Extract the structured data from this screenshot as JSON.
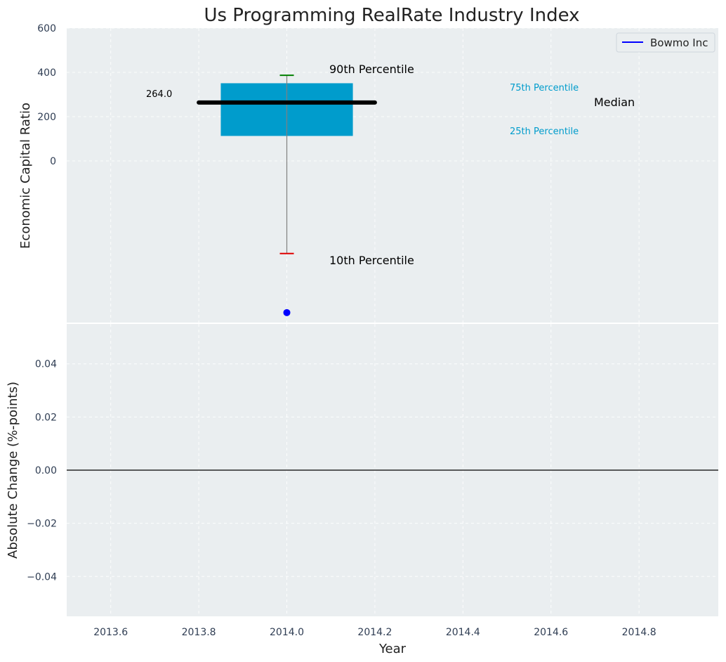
{
  "chart_data": [
    {
      "type": "box",
      "title": "Us Programming RealRate Industry Index",
      "ylabel": "Economic Capital Ratio",
      "ylim": [
        -730,
        600
      ],
      "yticks": [
        0,
        200,
        400,
        600
      ],
      "xlim": [
        2013.5,
        2014.98
      ],
      "grid": true,
      "year": 2014.0,
      "percentiles": {
        "p10": -418,
        "p25": 113,
        "median": 264,
        "p75": 351,
        "p90": 387
      },
      "median_label": "264.0",
      "series": [
        {
          "name": "Bowmo Inc",
          "x": [
            2014.0
          ],
          "y": [
            -685
          ],
          "color": "#0000ff"
        }
      ],
      "annotations": {
        "p90": "90th Percentile",
        "p10": "10th Percentile",
        "p75": "75th Percentile",
        "p25": "25th Percentile",
        "median": "Median"
      },
      "legend": {
        "placement": "top-right",
        "entries": [
          "Bowmo Inc"
        ]
      },
      "colors": {
        "box": "#009ccc",
        "median": "#000000",
        "p90_cap": "#008000",
        "p10_cap": "#e00000",
        "whisker": "#808080",
        "background": "#eaeef0"
      }
    },
    {
      "type": "line",
      "ylabel": "Absolute Change (%-points)",
      "xlabel": "Year",
      "ylim": [
        -0.055,
        0.055
      ],
      "yticks": [
        -0.04,
        -0.02,
        0.0,
        0.02,
        0.04
      ],
      "ytick_labels": [
        "−0.04",
        "−0.02",
        "0.00",
        "0.02",
        "0.04"
      ],
      "xlim": [
        2013.5,
        2014.98
      ],
      "xticks": [
        2013.6,
        2013.8,
        2014.0,
        2014.2,
        2014.4,
        2014.6,
        2014.8
      ],
      "xtick_labels": [
        "2013.6",
        "2013.8",
        "2014.0",
        "2014.2",
        "2014.4",
        "2014.6",
        "2014.8"
      ],
      "zero_line": true,
      "grid": true
    }
  ]
}
